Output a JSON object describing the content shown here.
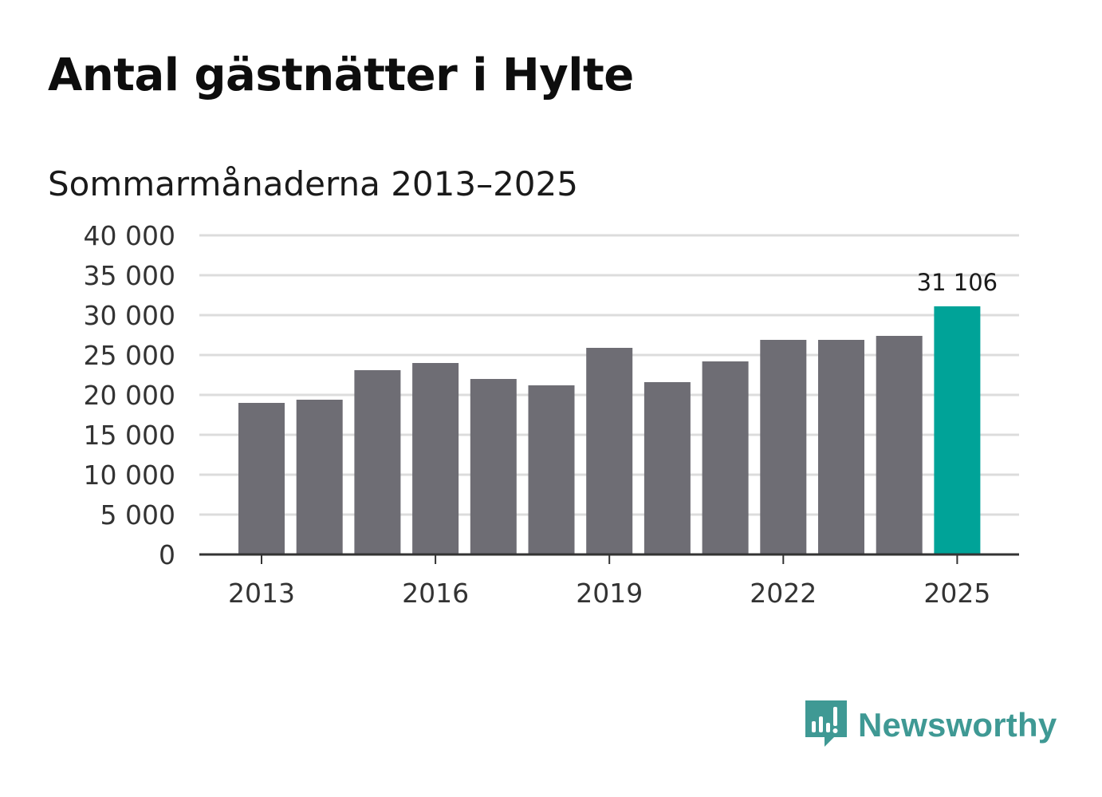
{
  "title": "Antal gästnätter i Hylte",
  "subtitle": "Sommarmånaderna 2013–2025",
  "brand": {
    "name": "Newsworthy",
    "icon": "newsworthy-logo-icon",
    "color": "#3f9994"
  },
  "colors": {
    "bar": "#6e6d74",
    "highlight": "#00a398",
    "grid": "#dcdcdc",
    "axis": "#333333"
  },
  "chart_data": {
    "type": "bar",
    "title": "Antal gästnätter i Hylte",
    "subtitle": "Sommarmånaderna 2013–2025",
    "xlabel": "",
    "ylabel": "",
    "categories": [
      "2013",
      "2014",
      "2015",
      "2016",
      "2017",
      "2018",
      "2019",
      "2020",
      "2021",
      "2022",
      "2023",
      "2024",
      "2025"
    ],
    "values": [
      19000,
      19400,
      23100,
      24000,
      22000,
      21200,
      25900,
      21600,
      24200,
      26900,
      26900,
      27400,
      31106
    ],
    "highlight_index": 12,
    "data_label": {
      "index": 12,
      "text": "31 106"
    },
    "x_tick_labels": [
      "2013",
      "2016",
      "2019",
      "2022",
      "2025"
    ],
    "y_tick_labels": [
      "0",
      "5 000",
      "10 000",
      "15 000",
      "20 000",
      "25 000",
      "30 000",
      "35 000",
      "40 000"
    ],
    "y_ticks": [
      0,
      5000,
      10000,
      15000,
      20000,
      25000,
      30000,
      35000,
      40000
    ],
    "ylim": [
      0,
      40000
    ],
    "grid": true,
    "legend": "none"
  }
}
